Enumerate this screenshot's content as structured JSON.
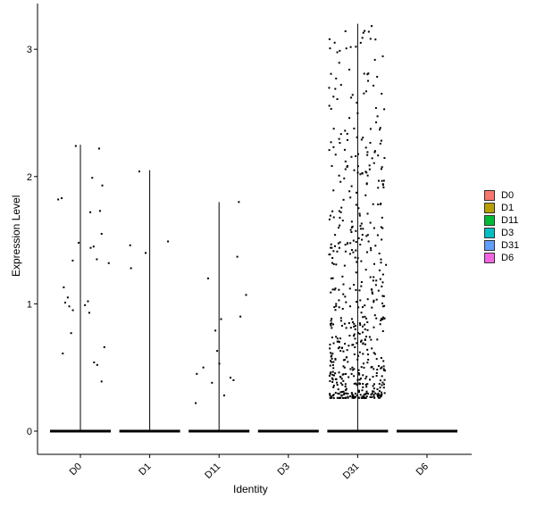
{
  "chart_data": {
    "type": "scatter",
    "subtype": "violin-jitter",
    "xlabel": "Identity",
    "ylabel": "Expression Level",
    "categories": [
      "D0",
      "D1",
      "D11",
      "D3",
      "D31",
      "D6"
    ],
    "ylim": [
      -0.18,
      3.36
    ],
    "yticks": [
      0,
      1,
      2,
      3
    ],
    "grid": false,
    "legend": {
      "position": "right",
      "title": ""
    },
    "series": [
      {
        "name": "D0",
        "color": "#F8766D",
        "max": 2.25,
        "points": [
          0.93,
          0.98,
          1.02,
          1.32,
          1.44,
          1.72,
          1.83,
          1.93,
          1.99,
          2.22,
          0.54,
          0.77,
          0.52,
          0.61,
          0.99,
          1.01,
          1.13,
          1.35,
          1.55,
          1.73,
          1.82,
          1.48,
          1.45,
          1.34,
          1.05,
          0.95,
          0.66,
          0.39,
          2.24
        ]
      },
      {
        "name": "D1",
        "color": "#B79F00",
        "max": 2.05,
        "points": [
          1.4,
          1.49,
          1.28,
          1.46,
          2.04
        ]
      },
      {
        "name": "D11",
        "color": "#00BA38",
        "max": 1.8,
        "points": [
          0.38,
          0.53,
          1.07,
          0.63,
          0.4,
          0.5,
          0.79,
          0.9,
          1.37,
          1.2,
          0.88,
          1.8,
          0.42,
          0.45,
          0.28,
          0.22
        ]
      },
      {
        "name": "D3",
        "color": "#00BFC4",
        "max": 0.0,
        "points": []
      },
      {
        "name": "D31",
        "color": "#619CFF",
        "max": 3.2,
        "points_count": 560,
        "points_range": [
          0.26,
          3.2
        ],
        "points_highlight": [
          3.02,
          2.84,
          2.77,
          2.72,
          2.62,
          2.58
        ]
      },
      {
        "name": "D6",
        "color": "#F564E3",
        "max": 0.0,
        "points": []
      }
    ]
  }
}
